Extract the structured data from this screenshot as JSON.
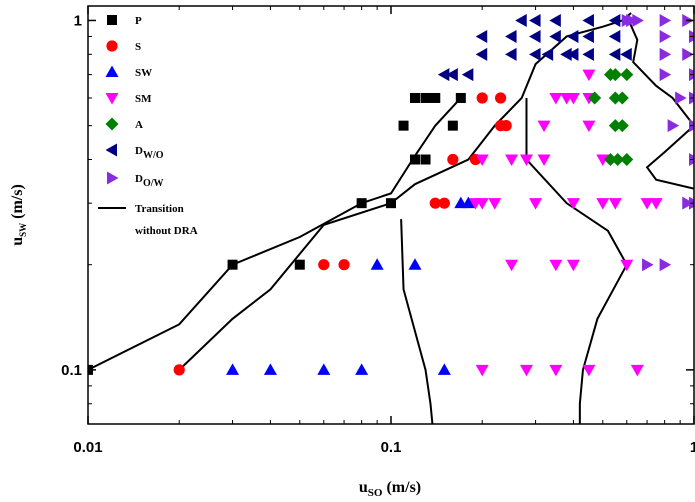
{
  "chart_data": {
    "type": "scatter",
    "xscale": "log",
    "yscale": "log",
    "xlim": [
      0.01,
      1
    ],
    "ylim": [
      0.07,
      1.1
    ],
    "xlabel_main": "u",
    "xlabel_sub": "SO",
    "xlabel_unit": " (m/s)",
    "ylabel_main": "u",
    "ylabel_sub": "SW",
    "ylabel_unit": " (m/s)",
    "xticks": [
      0.01,
      0.1,
      1
    ],
    "xtick_labels": [
      "0.01",
      "0.1",
      "1"
    ],
    "yticks": [
      0.1,
      1
    ],
    "ytick_labels": [
      "0.1",
      "1"
    ],
    "grid": false,
    "legend_position": "top-left",
    "series": [
      {
        "name": "P",
        "marker": "square",
        "color": "#000000",
        "points": [
          [
            0.01,
            0.1
          ],
          [
            0.03,
            0.2
          ],
          [
            0.05,
            0.2
          ],
          [
            0.08,
            0.3
          ],
          [
            0.1,
            0.3
          ],
          [
            0.12,
            0.4
          ],
          [
            0.13,
            0.4
          ],
          [
            0.11,
            0.5
          ],
          [
            0.16,
            0.5
          ],
          [
            0.12,
            0.6
          ],
          [
            0.13,
            0.6
          ],
          [
            0.14,
            0.6
          ],
          [
            0.17,
            0.6
          ]
        ]
      },
      {
        "name": "S",
        "marker": "circle",
        "color": "#ff0000",
        "points": [
          [
            0.02,
            0.1
          ],
          [
            0.06,
            0.2
          ],
          [
            0.07,
            0.2
          ],
          [
            0.14,
            0.3
          ],
          [
            0.15,
            0.3
          ],
          [
            0.16,
            0.4
          ],
          [
            0.19,
            0.4
          ],
          [
            0.23,
            0.5
          ],
          [
            0.24,
            0.5
          ],
          [
            0.2,
            0.6
          ],
          [
            0.23,
            0.6
          ]
        ]
      },
      {
        "name": "SW",
        "marker": "triangle-up",
        "color": "#0000ff",
        "points": [
          [
            0.03,
            0.1
          ],
          [
            0.04,
            0.1
          ],
          [
            0.06,
            0.1
          ],
          [
            0.08,
            0.1
          ],
          [
            0.15,
            0.1
          ],
          [
            0.09,
            0.2
          ],
          [
            0.12,
            0.2
          ],
          [
            0.17,
            0.3
          ],
          [
            0.18,
            0.3
          ]
        ]
      },
      {
        "name": "SM",
        "marker": "triangle-down",
        "color": "#ff00ff",
        "points": [
          [
            0.2,
            0.1
          ],
          [
            0.28,
            0.1
          ],
          [
            0.35,
            0.1
          ],
          [
            0.45,
            0.1
          ],
          [
            0.65,
            0.1
          ],
          [
            0.25,
            0.2
          ],
          [
            0.35,
            0.2
          ],
          [
            0.4,
            0.2
          ],
          [
            0.6,
            0.2
          ],
          [
            0.19,
            0.3
          ],
          [
            0.2,
            0.3
          ],
          [
            0.22,
            0.3
          ],
          [
            0.3,
            0.3
          ],
          [
            0.4,
            0.3
          ],
          [
            0.5,
            0.3
          ],
          [
            0.55,
            0.3
          ],
          [
            0.7,
            0.3
          ],
          [
            0.75,
            0.3
          ],
          [
            0.2,
            0.4
          ],
          [
            0.25,
            0.4
          ],
          [
            0.28,
            0.4
          ],
          [
            0.32,
            0.4
          ],
          [
            0.5,
            0.4
          ],
          [
            0.32,
            0.5
          ],
          [
            0.45,
            0.5
          ],
          [
            0.35,
            0.6
          ],
          [
            0.38,
            0.6
          ],
          [
            0.4,
            0.6
          ],
          [
            0.45,
            0.6
          ],
          [
            0.45,
            0.7
          ]
        ]
      },
      {
        "name": "A",
        "marker": "diamond",
        "color": "#008000",
        "points": [
          [
            0.53,
            0.4
          ],
          [
            0.56,
            0.4
          ],
          [
            0.6,
            0.4
          ],
          [
            0.55,
            0.5
          ],
          [
            0.58,
            0.5
          ],
          [
            0.47,
            0.6
          ],
          [
            0.55,
            0.6
          ],
          [
            0.58,
            0.6
          ],
          [
            0.53,
            0.7
          ],
          [
            0.55,
            0.7
          ],
          [
            0.6,
            0.7
          ]
        ]
      },
      {
        "name": "D_W/O",
        "marker": "triangle-left",
        "color": "#000080",
        "points": [
          [
            0.15,
            0.7
          ],
          [
            0.16,
            0.7
          ],
          [
            0.18,
            0.7
          ],
          [
            0.2,
            0.8
          ],
          [
            0.25,
            0.8
          ],
          [
            0.3,
            0.8
          ],
          [
            0.33,
            0.8
          ],
          [
            0.38,
            0.8
          ],
          [
            0.4,
            0.8
          ],
          [
            0.45,
            0.8
          ],
          [
            0.55,
            0.8
          ],
          [
            0.6,
            0.8
          ],
          [
            0.2,
            0.9
          ],
          [
            0.25,
            0.9
          ],
          [
            0.3,
            0.9
          ],
          [
            0.35,
            0.9
          ],
          [
            0.4,
            0.9
          ],
          [
            0.45,
            0.9
          ],
          [
            0.55,
            0.9
          ],
          [
            0.27,
            1.0
          ],
          [
            0.3,
            1.0
          ],
          [
            0.35,
            1.0
          ],
          [
            0.45,
            1.0
          ],
          [
            0.55,
            1.0
          ]
        ]
      },
      {
        "name": "D_O/W",
        "marker": "triangle-right",
        "color": "#8a2be2",
        "points": [
          [
            0.7,
            0.2
          ],
          [
            0.8,
            0.2
          ],
          [
            0.95,
            0.3
          ],
          [
            1.0,
            0.3
          ],
          [
            1.0,
            0.4
          ],
          [
            0.85,
            0.5
          ],
          [
            1.0,
            0.5
          ],
          [
            0.9,
            0.6
          ],
          [
            1.0,
            0.6
          ],
          [
            0.8,
            0.7
          ],
          [
            1.0,
            0.7
          ],
          [
            0.8,
            0.8
          ],
          [
            0.95,
            0.8
          ],
          [
            0.8,
            0.9
          ],
          [
            1.0,
            0.9
          ],
          [
            0.6,
            1.0
          ],
          [
            0.62,
            1.0
          ],
          [
            0.65,
            1.0
          ],
          [
            0.8,
            1.0
          ],
          [
            0.95,
            1.0
          ]
        ]
      }
    ],
    "transition_lines": [
      [
        [
          0.01,
          0.1
        ],
        [
          0.02,
          0.135
        ],
        [
          0.03,
          0.2
        ],
        [
          0.05,
          0.24
        ],
        [
          0.08,
          0.3
        ],
        [
          0.1,
          0.32
        ],
        [
          0.12,
          0.41
        ],
        [
          0.14,
          0.5
        ],
        [
          0.17,
          0.6
        ]
      ],
      [
        [
          0.02,
          0.1
        ],
        [
          0.03,
          0.14
        ],
        [
          0.04,
          0.17
        ],
        [
          0.06,
          0.26
        ],
        [
          0.1,
          0.3
        ],
        [
          0.12,
          0.34
        ],
        [
          0.18,
          0.4
        ],
        [
          0.22,
          0.5
        ],
        [
          0.27,
          0.6
        ],
        [
          0.3,
          0.75
        ],
        [
          0.38,
          0.9
        ],
        [
          0.5,
          0.96
        ],
        [
          0.58,
          1.0
        ],
        [
          0.62,
          1.05
        ]
      ],
      [
        [
          0.108,
          0.27
        ],
        [
          0.11,
          0.17
        ],
        [
          0.13,
          0.1
        ],
        [
          0.135,
          0.08
        ],
        [
          0.137,
          0.07
        ]
      ],
      [
        [
          0.28,
          0.6
        ],
        [
          0.28,
          0.4
        ],
        [
          0.38,
          0.3
        ],
        [
          0.52,
          0.25
        ],
        [
          0.6,
          0.2
        ],
        [
          0.48,
          0.14
        ],
        [
          0.43,
          0.1
        ],
        [
          0.42,
          0.08
        ],
        [
          0.42,
          0.07
        ]
      ],
      [
        [
          0.6,
          1.03
        ],
        [
          0.65,
          0.88
        ],
        [
          0.63,
          0.76
        ],
        [
          0.75,
          0.65
        ],
        [
          0.85,
          0.6
        ],
        [
          1.0,
          0.5
        ],
        [
          0.8,
          0.42
        ],
        [
          0.7,
          0.38
        ],
        [
          0.75,
          0.35
        ],
        [
          1.0,
          0.33
        ]
      ]
    ],
    "legend": [
      {
        "label": "P",
        "sub": "",
        "marker": "square",
        "color": "#000000"
      },
      {
        "label": "S",
        "sub": "",
        "marker": "circle",
        "color": "#ff0000"
      },
      {
        "label": "SW",
        "sub": "",
        "marker": "triangle-up",
        "color": "#0000ff"
      },
      {
        "label": "SM",
        "sub": "",
        "marker": "triangle-down",
        "color": "#ff00ff"
      },
      {
        "label": "A",
        "sub": "",
        "marker": "diamond",
        "color": "#008000"
      },
      {
        "label": "D",
        "sub": "W/O",
        "marker": "triangle-left",
        "color": "#000080"
      },
      {
        "label": "D",
        "sub": "O/W",
        "marker": "triangle-right",
        "color": "#8a2be2"
      },
      {
        "label": "Transition",
        "label2": "without DRA",
        "marker": "line",
        "color": "#000000"
      }
    ]
  }
}
